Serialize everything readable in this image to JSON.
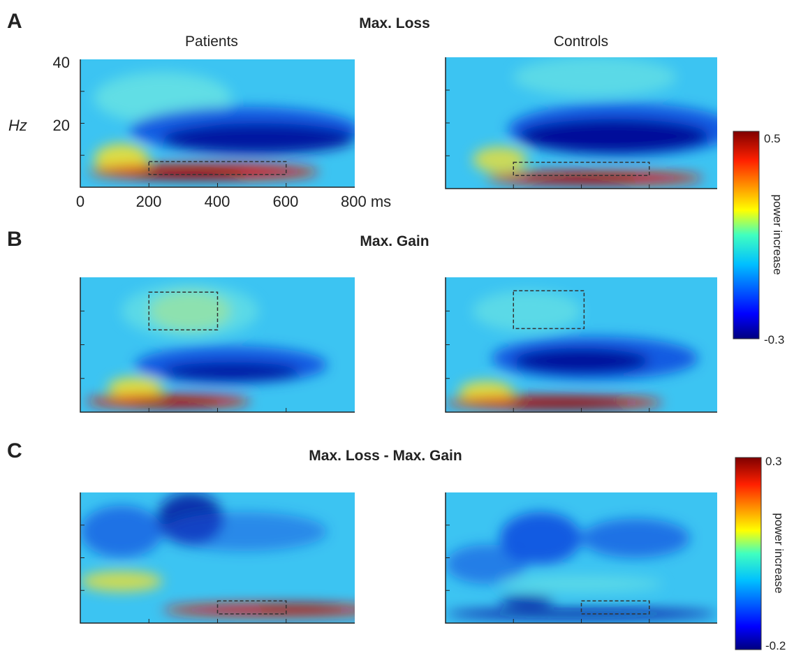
{
  "panels": [
    {
      "label": "A",
      "title": "Max. Loss"
    },
    {
      "label": "B",
      "title": "Max. Gain"
    },
    {
      "label": "C",
      "title": "Max. Loss - Max. Gain"
    }
  ],
  "columns": [
    "Patients",
    "Controls"
  ],
  "y_axis": {
    "label": "Hz",
    "ticks": [
      "40",
      "20"
    ]
  },
  "x_axis": {
    "ticks": [
      "0",
      "200",
      "400",
      "600",
      "800 ms"
    ]
  },
  "colorbars": [
    {
      "max": "0.5",
      "min": "-0.3",
      "label": "power increase"
    },
    {
      "max": "0.3",
      "min": "-0.2",
      "label": "power increase"
    }
  ]
}
